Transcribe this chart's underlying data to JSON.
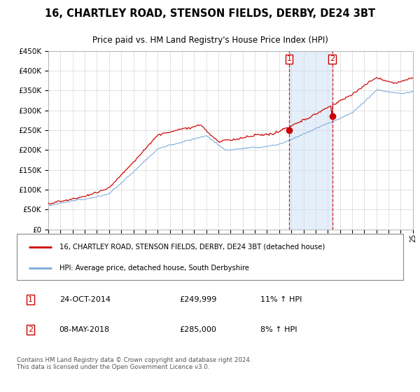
{
  "title": "16, CHARTLEY ROAD, STENSON FIELDS, DERBY, DE24 3BT",
  "subtitle": "Price paid vs. HM Land Registry's House Price Index (HPI)",
  "legend_line1": "16, CHARTLEY ROAD, STENSON FIELDS, DERBY, DE24 3BT (detached house)",
  "legend_line2": "HPI: Average price, detached house, South Derbyshire",
  "annotation1_label": "1",
  "annotation1_date": "24-OCT-2014",
  "annotation1_price": "£249,999",
  "annotation1_hpi": "11% ↑ HPI",
  "annotation2_label": "2",
  "annotation2_date": "08-MAY-2018",
  "annotation2_price": "£285,000",
  "annotation2_hpi": "8% ↑ HPI",
  "marker1_x": 2014.82,
  "marker1_y": 249999,
  "marker2_x": 2018.36,
  "marker2_y": 285000,
  "vline1_x": 2014.82,
  "vline2_x": 2018.36,
  "shade_start": 2014.82,
  "shade_end": 2018.36,
  "ylim": [
    0,
    450000
  ],
  "xlim_start": 1995,
  "xlim_end": 2025,
  "red_color": "#cc0000",
  "blue_color": "#7aaadd",
  "shade_color": "#cce0f5",
  "grid_color": "#cccccc",
  "footer": "Contains HM Land Registry data © Crown copyright and database right 2024.\nThis data is licensed under the Open Government Licence v3.0."
}
